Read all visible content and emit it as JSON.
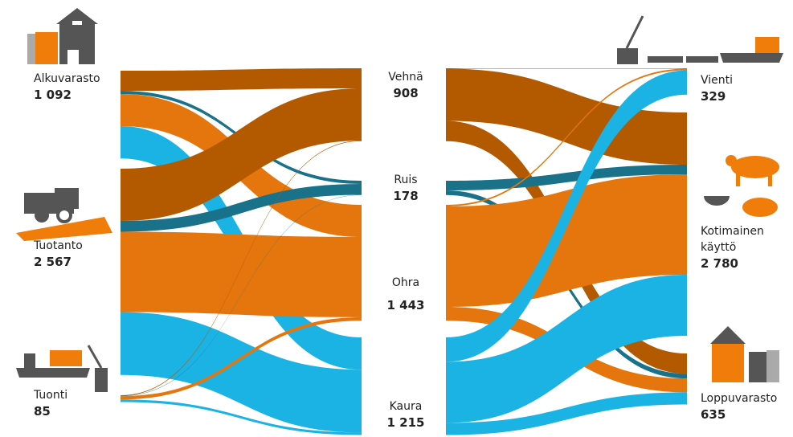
{
  "nodes": [
    {
      "name": "Alkuvarasto",
      "value": {
        "value": 1092,
        "label": "1 092"
      }
    },
    {
      "name": "Tuotanto",
      "value": {
        "value": 2567,
        "label": "2 567"
      }
    },
    {
      "name": "Tuonti",
      "value": {
        "value": 85,
        "label": "85"
      }
    },
    {
      "name": "Vehnä",
      "value": {
        "value": 908,
        "label": "908"
      },
      "color": "#b35a00"
    },
    {
      "name": "Ruis",
      "value": {
        "value": 178,
        "label": "178"
      },
      "color": "#19718a"
    },
    {
      "name": "Ohra",
      "value": {
        "value": 1443,
        "label": "1 443"
      },
      "color": "#e5760e"
    },
    {
      "name": "Kaura",
      "value": {
        "value": 1215,
        "label": "1 215"
      },
      "color": "#1bb3e3"
    },
    {
      "name": "Vienti",
      "value": {
        "value": 329,
        "label": "329"
      }
    },
    {
      "name": "Kotimainen käyttö",
      "value": {
        "value": 2780,
        "label": "2 780"
      }
    },
    {
      "name": "Loppuvarasto",
      "value": {
        "value": 635,
        "label": "635"
      }
    }
  ],
  "links": [
    {
      "source": 0,
      "target": 3,
      "value": 250
    },
    {
      "source": 0,
      "target": 4,
      "value": 40
    },
    {
      "source": 0,
      "target": 5,
      "value": 400
    },
    {
      "source": 0,
      "target": 6,
      "value": 402
    },
    {
      "source": 1,
      "target": 3,
      "value": 650
    },
    {
      "source": 1,
      "target": 4,
      "value": 135
    },
    {
      "source": 1,
      "target": 5,
      "value": 1000
    },
    {
      "source": 1,
      "target": 6,
      "value": 782
    },
    {
      "source": 2,
      "target": 3,
      "value": 8
    },
    {
      "source": 2,
      "target": 4,
      "value": 3
    },
    {
      "source": 2,
      "target": 5,
      "value": 43
    },
    {
      "source": 2,
      "target": 6,
      "value": 31
    },
    {
      "source": 3,
      "target": 7,
      "value": 5
    },
    {
      "source": 3,
      "target": 8,
      "value": 650
    },
    {
      "source": 3,
      "target": 9,
      "value": 253
    },
    {
      "source": 4,
      "target": 8,
      "value": 120
    },
    {
      "source": 4,
      "target": 9,
      "value": 58
    },
    {
      "source": 5,
      "target": 7,
      "value": 20
    },
    {
      "source": 5,
      "target": 8,
      "value": 1250
    },
    {
      "source": 5,
      "target": 9,
      "value": 173
    },
    {
      "source": 6,
      "target": 7,
      "value": 304
    },
    {
      "source": 6,
      "target": 8,
      "value": 760
    },
    {
      "source": 6,
      "target": 9,
      "value": 151
    }
  ]
}
